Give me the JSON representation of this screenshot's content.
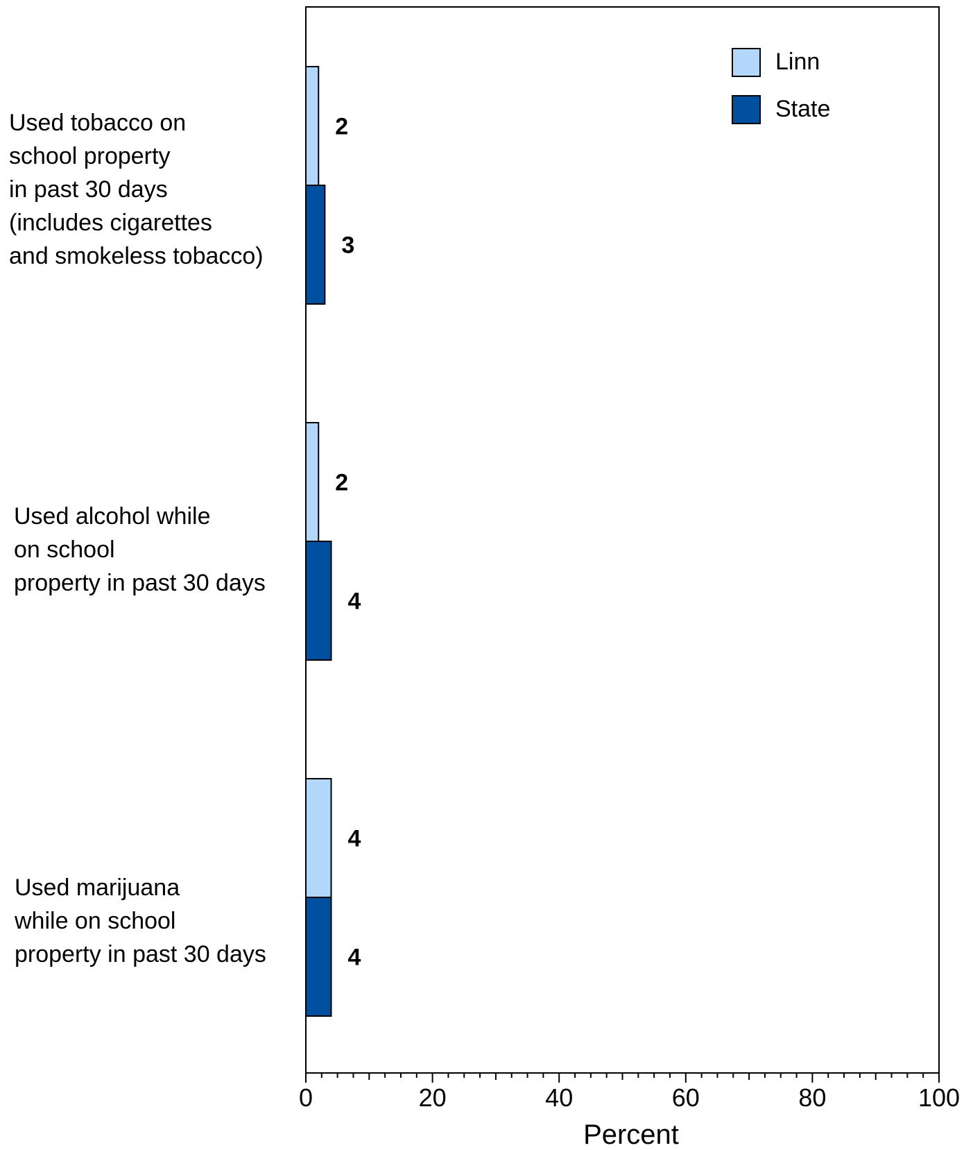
{
  "chart_data": {
    "type": "bar",
    "orientation": "horizontal",
    "categories": [
      [
        "Used tobacco on",
        "school property",
        "in past 30 days",
        "(includes cigarettes",
        "and smokeless tobacco)"
      ],
      [
        "Used alcohol while",
        "on school",
        "property in past 30 days"
      ],
      [
        "Used marijuana",
        "while on school",
        "property in past 30 days"
      ]
    ],
    "series": [
      {
        "name": "Linn",
        "values": [
          2,
          2,
          4
        ],
        "color": "#b3d7fb"
      },
      {
        "name": "State",
        "values": [
          3,
          4,
          4
        ],
        "color": "#0050a0"
      }
    ],
    "xlabel": "Percent",
    "xlim": [
      0,
      100
    ],
    "xticks": [
      "0",
      "20",
      "40",
      "60",
      "80",
      "100"
    ],
    "legend_position": "top-right",
    "grid": false
  }
}
